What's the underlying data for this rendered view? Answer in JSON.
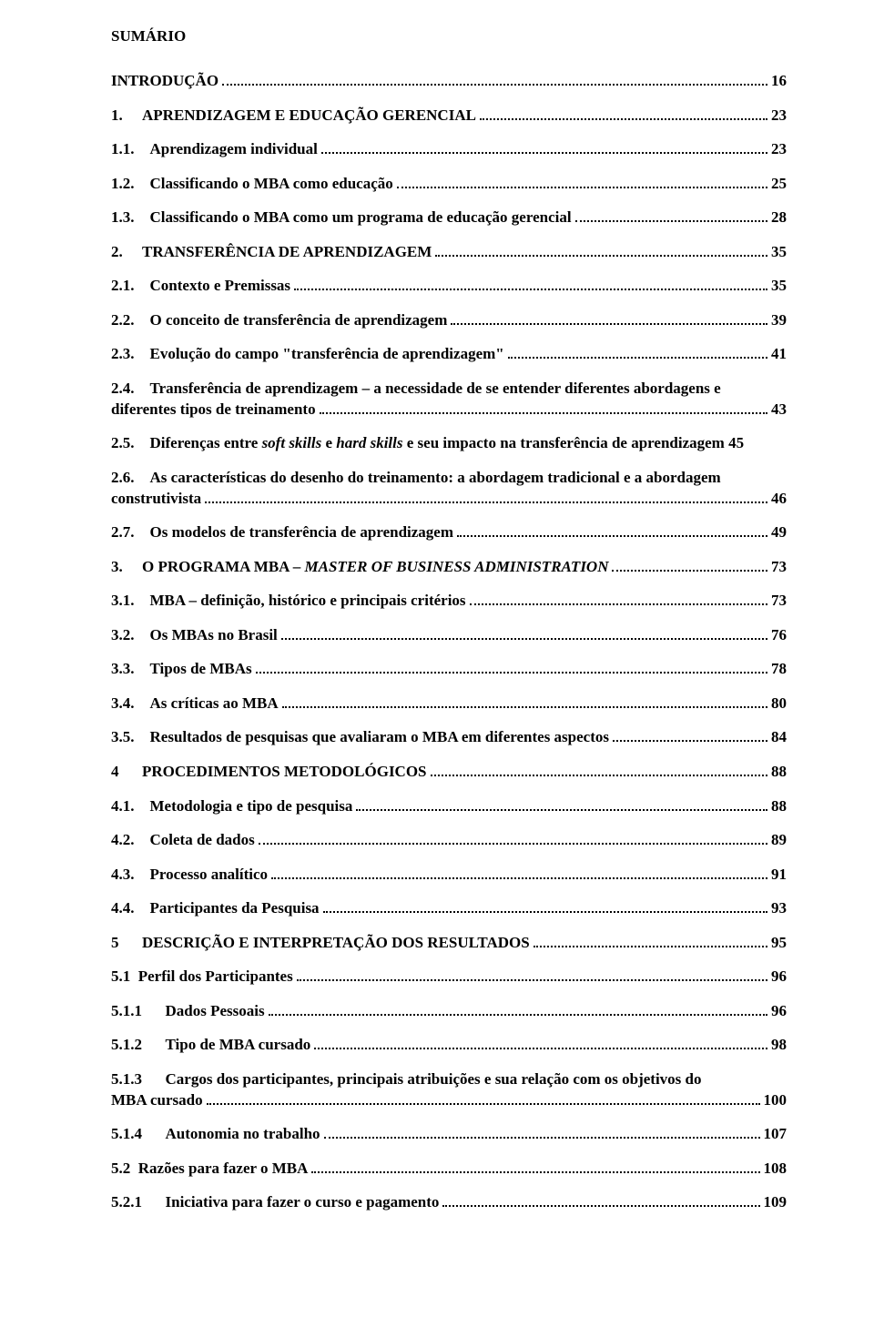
{
  "title": "SUMÁRIO",
  "entries": [
    {
      "label": "",
      "text": "INTRODUÇÃO",
      "page": "16",
      "multi": false
    },
    {
      "label": "1.",
      "text": "APRENDIZAGEM E EDUCAÇÃO GERENCIAL",
      "page": "23",
      "multi": false
    },
    {
      "label": "1.1.",
      "text": "Aprendizagem individual",
      "page": "23",
      "multi": false
    },
    {
      "label": "1.2.",
      "text": "Classificando o MBA como educação",
      "page": "25",
      "multi": false
    },
    {
      "label": "1.3.",
      "text": "Classificando o MBA como um programa de educação gerencial",
      "page": "28",
      "multi": false
    },
    {
      "label": "2.",
      "text": "TRANSFERÊNCIA DE APRENDIZAGEM",
      "page": "35",
      "multi": false
    },
    {
      "label": "2.1.",
      "text": "Contexto e Premissas",
      "page": "35",
      "multi": false
    },
    {
      "label": "2.2.",
      "text": "O conceito de transferência de aprendizagem",
      "page": "39",
      "multi": false
    },
    {
      "label": "2.3.",
      "text": "Evolução do campo \"transferência de aprendizagem\"",
      "page": "41",
      "multi": false
    },
    {
      "label": "2.4.",
      "text_line1": "Transferência de aprendizagem – a necessidade de se entender diferentes abordagens e",
      "text_line2": "diferentes tipos de treinamento",
      "page": "43",
      "multi": true
    },
    {
      "label": "2.5.",
      "text_pre": "Diferenças entre ",
      "italic1": "soft skills",
      "mid": " e ",
      "italic2": "hard skills",
      "text_post": " e seu impacto na transferência de aprendizagem",
      "page": "45",
      "multi": false,
      "special": "25"
    },
    {
      "label": "2.6.",
      "text_line1": "As características do desenho do treinamento: a abordagem tradicional e a abordagem",
      "text_line2": "construtivista",
      "page": "46",
      "multi": true
    },
    {
      "label": "2.7.",
      "text": "Os modelos de transferência de aprendizagem",
      "page": "49",
      "multi": false
    },
    {
      "label": "3.",
      "text_pre": "O PROGRAMA MBA – ",
      "italic1": "MASTER OF BUSINESS ADMINISTRATION",
      "page": "73",
      "special": "3"
    },
    {
      "label": "3.1.",
      "text": "MBA – definição, histórico e principais critérios",
      "page": "73",
      "multi": false
    },
    {
      "label": "3.2.",
      "text": "Os MBAs no Brasil",
      "page": "76",
      "multi": false
    },
    {
      "label": "3.3.",
      "text": "Tipos de MBAs",
      "page": "78",
      "multi": false
    },
    {
      "label": "3.4.",
      "text": "As críticas ao MBA",
      "page": "80",
      "multi": false
    },
    {
      "label": "3.5.",
      "text": "Resultados de pesquisas que avaliaram o MBA em diferentes aspectos",
      "page": "84",
      "multi": false
    },
    {
      "label": "4",
      "text": "PROCEDIMENTOS METODOLÓGICOS",
      "page": "88",
      "multi": false,
      "gap": true
    },
    {
      "label": "4.1.",
      "text": "Metodologia e tipo de pesquisa",
      "page": "88",
      "multi": false
    },
    {
      "label": "4.2.",
      "text": "Coleta de dados",
      "page": "89",
      "multi": false
    },
    {
      "label": "4.3.",
      "text": "Processo analítico",
      "page": "91",
      "multi": false
    },
    {
      "label": "4.4.",
      "text": "Participantes da Pesquisa",
      "page": "93",
      "multi": false
    },
    {
      "label": "5",
      "text": "DESCRIÇÃO E INTERPRETAÇÃO DOS RESULTADOS",
      "page": "95",
      "multi": false,
      "gap": true
    },
    {
      "label": "5.1",
      "text": "Perfil dos Participantes",
      "page": "96",
      "multi": false,
      "gap_small": true
    },
    {
      "label": "5.1.1",
      "text": "Dados Pessoais",
      "page": "96",
      "multi": false,
      "gap": true
    },
    {
      "label": "5.1.2",
      "text": "Tipo de MBA cursado",
      "page": "98",
      "multi": false,
      "gap": true
    },
    {
      "label": "5.1.3",
      "text_line1": "Cargos dos participantes, principais atribuições e sua relação com os objetivos do",
      "text_line2": "MBA cursado",
      "page": "100",
      "multi": true,
      "gap": true,
      "neg_indent": true
    },
    {
      "label": "5.1.4",
      "text": "Autonomia no trabalho",
      "page": "107",
      "multi": false,
      "gap": true
    },
    {
      "label": "5.2",
      "text": "Razões para fazer o MBA",
      "page": "108",
      "multi": false,
      "gap_small": true
    },
    {
      "label": "5.2.1",
      "text": "Iniciativa para fazer o curso e pagamento",
      "page": "109",
      "multi": false,
      "gap": true
    }
  ],
  "colors": {
    "text": "#000000",
    "background": "#ffffff",
    "dots": "#000000"
  },
  "typography": {
    "font_family": "Times New Roman",
    "font_size_pt": 12,
    "weight": "bold"
  }
}
